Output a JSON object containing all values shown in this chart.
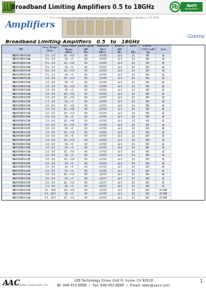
{
  "title": "Broadband Limiting Amplifiers 0.5 to 18GHz",
  "subtitle": "* The content of this specification may change without notification 6/17/05",
  "section_label": "Amplifiers",
  "coaxial_label": "Coaxial",
  "table_subtitle": "Broadband Limiting Amplifiers   0.5   to   18GHz",
  "header_bg": "#c8d4e8",
  "row_bg_alt": "#e8eef8",
  "row_bg_norm": "#ffffff",
  "border_color": "#999999",
  "col_headers_line1": [
    "P/N",
    "Freq. Range",
    "Input Power",
    "Noise Figure",
    "Saturated",
    "Flatness",
    "VSWR",
    "Current",
    "Case"
  ],
  "col_headers_line2": [
    "",
    "(GHz)",
    "Range",
    "(dB)",
    "Point",
    "(dB)",
    "",
    "+15V (mA)",
    ""
  ],
  "col_headers_line3": [
    "",
    "",
    "(dBm)",
    "Max",
    "(dBm)",
    "Max",
    "Max",
    "Typ",
    ""
  ],
  "rows": [
    [
      "MA2020N0510A",
      "0.5 - 2.0",
      "-20...+10",
      "6.0",
      "<17/25",
      "±1.5",
      "2:1",
      "300",
      "41"
    ],
    [
      "MA2020N0500A",
      "0.5 - 2.0",
      "-30...+5",
      "6.0",
      "<17/25",
      "±1.5",
      "2:1",
      "300",
      "41"
    ],
    [
      "MA2020N0510A",
      "0.5 - 2.0",
      "-20...+10",
      "6.0",
      "<17/25",
      "±1.0",
      "2:1",
      "300",
      "41"
    ],
    [
      "MA2020N0500B",
      "0.5 - 2.0",
      "-30...+5",
      "6.0",
      "<17/25",
      "±1.5",
      "2:1",
      "350",
      "41"
    ],
    [
      "MA2020N0510B",
      "0.5 - 2.0",
      "-20...+10",
      "6.0",
      "<17/25",
      "±1.5",
      "2:1",
      "350",
      "41"
    ],
    [
      "MA2020N0510B",
      "0.5 - 2.0",
      "-30...+5",
      "6.0",
      "<17/25",
      "±1.0",
      "2:1",
      "350",
      "41"
    ],
    [
      "MA2040N0510A",
      "2.0 - 4.0",
      "-20...+10",
      "6.0",
      "<17/25",
      "±1.5",
      "2:1",
      "300",
      "41"
    ],
    [
      "MA2040N0500A",
      "2.0 - 4.0",
      "-30...+5",
      "6.0",
      "<17/25",
      "±1.5",
      "2:1",
      "300",
      "41"
    ],
    [
      "MA2040N0510A",
      "2.0 - 4.0",
      "-20...+10",
      "6.0",
      "<17/25",
      "±1.5",
      "2:1",
      "300",
      "41"
    ],
    [
      "MA2040N0500A",
      "2.0 - 4.0",
      "-30...+5",
      "6.0",
      "<17/25",
      "±1.5",
      "2:1",
      "300",
      "41"
    ],
    [
      "MA2040N0510A",
      "2.0 - 4.0",
      "-20...+10",
      "6.0",
      "<17/25",
      "±1.5",
      "2:1",
      "300",
      "41"
    ],
    [
      "MA2040N0510B",
      "2.0 - 4.0",
      "-20...+10",
      "6.0",
      "<17/25",
      "±1.5",
      "2:1",
      "300",
      "44"
    ],
    [
      "MA2040N0570B",
      "2.7 - 4.0",
      "-30...+5",
      "6.0",
      "<17/25",
      "±1.5",
      "2:1",
      "350",
      "44"
    ],
    [
      "MA2040N0510B",
      "2.0 - 8.0",
      "-20...+10",
      "6.0",
      "<17/25",
      "±1.5",
      "2:1",
      "300",
      "44"
    ],
    [
      "MA2040N0570A",
      "2.0 - 6.0",
      "-20...+50",
      "6.0",
      "<17/25",
      "±1.5",
      "2:1",
      "300",
      "44"
    ],
    [
      "MA2060N0510A",
      "2.0 - 6.0",
      "-20...+10",
      "6.0",
      "<17/25",
      "±1.5",
      "2:1",
      "300",
      "41"
    ],
    [
      "MA2060N0500A",
      "2.0 - 6.0",
      "-30...+5",
      "6.0",
      "<17/25",
      "±1.5",
      "2:1",
      "300",
      "41"
    ],
    [
      "MA2060N0510A",
      "2.0 - 6.0",
      "-20...+10",
      "6.0",
      "<17/25",
      "±1.5",
      "2:1",
      "300",
      "41"
    ],
    [
      "MA2060N0510B",
      "2.0 - 6.0",
      "-20...+10",
      "6.0",
      "<17/25",
      "±1.5",
      "2:1",
      "350",
      "41"
    ],
    [
      "MA2060N0500B",
      "2.0 - 6.0",
      "-30...+5",
      "6.0",
      "<17/25",
      "±1.5",
      "2:1",
      "350",
      "41"
    ],
    [
      "MA2060N0510B",
      "2.0 - 6.0",
      "-20...+10",
      "6.0",
      "<17/25",
      "±1.5",
      "2:1",
      "350",
      "41"
    ],
    [
      "MA2060N0500B",
      "2.0 - 6.0",
      "-30...+5",
      "6.0",
      "<17/25",
      "±1.5",
      "2:1",
      "350",
      "41"
    ],
    [
      "MA2060N0510B",
      "2.0 - 6.0",
      "-20...+10",
      "6.0",
      "<17/25",
      "±1.5",
      "2:1",
      "350",
      "41"
    ],
    [
      "MA2060N0500A",
      "2.0 - 6.0",
      "-30...+5",
      "6.0",
      "<17/25",
      "±1.5",
      "2:1",
      "300",
      "41"
    ],
    [
      "MA2080N0500A",
      "2.0 - 8.0",
      "-30...+5",
      "6.0",
      "<17/25",
      "±1.5",
      "2:1",
      "300",
      "41"
    ],
    [
      "MA2080N0510A",
      "2.0 - 8.0",
      "-30...+10",
      "6.0",
      "<17/25",
      "±1.5",
      "2:1",
      "300",
      "41"
    ],
    [
      "MA2080N0510A",
      "2.0 - 8.0",
      "-30...+5",
      "6.0",
      "<17/25",
      "±1.5",
      "2:1",
      "300",
      "41"
    ],
    [
      "MA2080N0510B",
      "2.0 - 8.0",
      "-30...+10",
      "6.0",
      "<17/25",
      "±1.5",
      "2:1",
      "350",
      "41"
    ],
    [
      "MA2080N0500B",
      "2.0 - 8.0",
      "-30...+5",
      "6.0",
      "<17/25",
      "±1.5",
      "2:1",
      "350",
      "41"
    ],
    [
      "MA2080N0510B",
      "2.0 - 8.0",
      "-30...+5",
      "6.0",
      "<17/25",
      "±1.5",
      "2:1",
      "350",
      "41"
    ],
    [
      "MA2080N0500B",
      "2.0 - 8.0",
      "-30...+5",
      "6.0",
      "<17/25",
      "±1.5",
      "2:1",
      "350",
      "41"
    ],
    [
      "MA2080N0510A",
      "2.0 - 8.0",
      "-20...+10",
      "6.0",
      "<12/17",
      "±1.5",
      "2:1",
      "350",
      "41"
    ],
    [
      "MA2080N0500A",
      "2.0 - 8.0",
      "-30...+5",
      "6.0",
      "<12/17",
      "±1.5",
      "2:1",
      "350",
      "41"
    ],
    [
      "MA2080N0510B",
      "2.0 - 8.0",
      "-20...+10",
      "6.0",
      "<12/17",
      "±1.5",
      "2:1",
      "350",
      "41"
    ],
    [
      "MA2080N0500B",
      "2.0 - 8.0",
      "-30...+5",
      "6.0",
      "<12/17",
      "±1.5",
      "2:1",
      "350",
      "41"
    ],
    [
      "MA2180N0510A",
      "0.5 - 18.0",
      "-20...+10",
      "6.0",
      "<17/25",
      "±1.5",
      "2:1",
      "400",
      "41 WB"
    ],
    [
      "MA2180N0500A",
      "0.5 - 18.0",
      "-30...+5",
      "6.0",
      "<17/25",
      "±1.5",
      "2:1",
      "450",
      "41 WB"
    ],
    [
      "MA2180N0510A",
      "0.5 - 18.0",
      "-20...+10",
      "6.0",
      "<17/25",
      "±1.5",
      "2:1",
      "450",
      "41 WB"
    ]
  ],
  "footer_address": "188 Technology Drive, Unit H, Irvine, CA 92618",
  "footer_tel": "Tel: 949-453-9888  •  Fax: 949-453-8889  •  Email: sales@aacx.com",
  "footer_page": "1",
  "bg_color": "#ffffff"
}
